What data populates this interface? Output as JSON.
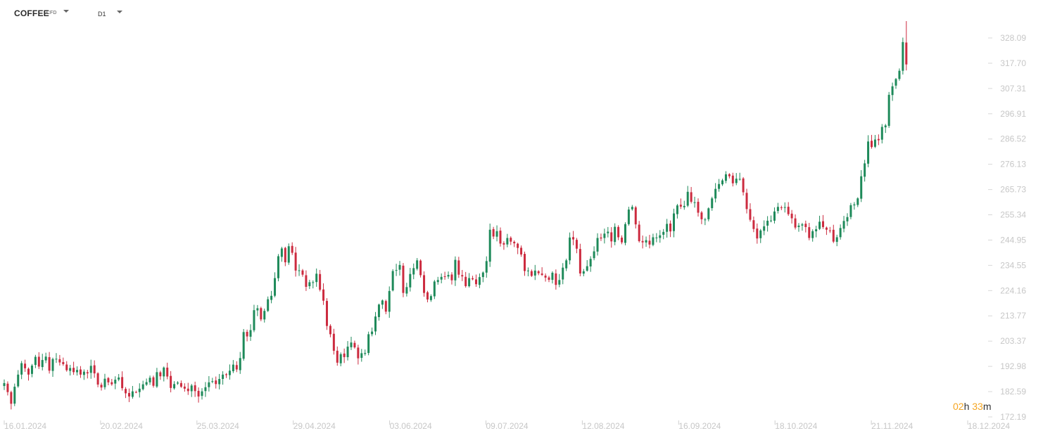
{
  "header": {
    "symbol": "COFFEE",
    "symbol_type": "CFD",
    "timeframe": "D1"
  },
  "countdown": {
    "hours": "02",
    "hours_unit": "h",
    "minutes": "33",
    "minutes_unit": "m"
  },
  "colors": {
    "up": "#1e8a5a",
    "down": "#cc2b3f",
    "axis_text": "#c7c7c7",
    "accent": "#f5a623"
  },
  "chart_data": {
    "type": "candlestick",
    "timeframe": "D1",
    "y_ticks": [
      "328.09",
      "317.70",
      "307.31",
      "296.91",
      "286.52",
      "276.13",
      "265.73",
      "255.34",
      "244.95",
      "234.55",
      "224.16",
      "213.77",
      "203.37",
      "192.98",
      "182.59",
      "172.19"
    ],
    "ylim": [
      172.19,
      328.09
    ],
    "x_ticks": [
      "16.01.2024",
      "20.02.2024",
      "25.03.2024",
      "29.04.2024",
      "03.06.2024",
      "09.07.2024",
      "12.08.2024",
      "16.09.2024",
      "18.10.2024",
      "21.11.2024",
      "18.12.2024"
    ],
    "closes": [
      186.1,
      182.4,
      177.6,
      184.6,
      189.6,
      194.3,
      192.2,
      189.6,
      193.3,
      196.9,
      192.9,
      195.6,
      197.0,
      191.2,
      196.0,
      196.1,
      194.6,
      193.9,
      191.4,
      192.3,
      190.6,
      191.5,
      189.6,
      190.8,
      190.1,
      193.2,
      190.1,
      185.5,
      184.3,
      187.9,
      186.4,
      185.6,
      187.5,
      188.4,
      184.0,
      181.9,
      180.6,
      182.7,
      182.4,
      183.8,
      185.6,
      186.5,
      188.3,
      185.0,
      190.6,
      188.9,
      192.5,
      188.8,
      184.1,
      185.7,
      186.3,
      184.6,
      183.8,
      182.8,
      185.1,
      182.8,
      180.6,
      182.7,
      184.4,
      186.4,
      186.9,
      185.7,
      187.8,
      189.6,
      189.4,
      191.2,
      193.7,
      191.7,
      196.4,
      207.1,
      205.3,
      207.9,
      216.1,
      216.9,
      212.3,
      215.8,
      220.6,
      222.0,
      229.3,
      238.3,
      241.5,
      235.8,
      242.4,
      239.7,
      232.4,
      232.5,
      230.7,
      225.7,
      227.6,
      227.6,
      231.1,
      224.5,
      220.0,
      209.6,
      206.2,
      199.4,
      194.5,
      198.0,
      196.8,
      201.1,
      202.8,
      200.8,
      196.3,
      198.4,
      198.5,
      206.2,
      207.3,
      213.5,
      218.4,
      220.1,
      215.5,
      224.0,
      232.2,
      232.6,
      234.7,
      223.2,
      225.6,
      231.0,
      233.4,
      236.6,
      230.5,
      223.2,
      220.5,
      221.9,
      227.9,
      228.5,
      229.8,
      229.8,
      230.6,
      228.4,
      236.8,
      230.7,
      230.0,
      226.0,
      229.3,
      228.8,
      226.8,
      229.7,
      231.6,
      236.3,
      249.2,
      246.4,
      248.6,
      243.5,
      243.1,
      245.8,
      244.3,
      243.6,
      241.7,
      239.0,
      232.2,
      232.4,
      230.2,
      232.4,
      231.3,
      230.6,
      229.5,
      228.6,
      231.5,
      226.5,
      228.5,
      233.6,
      236.6,
      246.0,
      245.2,
      241.4,
      231.2,
      232.1,
      234.2,
      237.2,
      240.3,
      245.8,
      245.6,
      247.6,
      248.4,
      244.4,
      250.4,
      246.1,
      244.0,
      251.5,
      257.5,
      258.6,
      251.4,
      244.5,
      244.0,
      244.9,
      243.1,
      246.1,
      246.0,
      246.9,
      248.3,
      251.6,
      248.5,
      255.9,
      259.2,
      258.7,
      259.0,
      264.8,
      260.7,
      260.5,
      256.2,
      253.5,
      253.4,
      258.0,
      262.1,
      266.0,
      268.0,
      269.5,
      272.0,
      271.2,
      268.3,
      270.2,
      270.1,
      264.6,
      257.7,
      253.3,
      249.5,
      245.6,
      248.9,
      250.6,
      252.9,
      253.0,
      256.7,
      258.6,
      258.3,
      258.5,
      255.6,
      253.9,
      250.1,
      250.9,
      251.4,
      250.3,
      245.8,
      248.6,
      249.4,
      252.5,
      250.3,
      249.2,
      248.9,
      244.3,
      246.1,
      249.9,
      252.8,
      254.4,
      259.3,
      259.6,
      262.1,
      271.2,
      276.5,
      285.5,
      283.2,
      286.3,
      286.0,
      291.5,
      292.1,
      304.7,
      308.2,
      311.2,
      314.6,
      326.4,
      317.2
    ]
  }
}
